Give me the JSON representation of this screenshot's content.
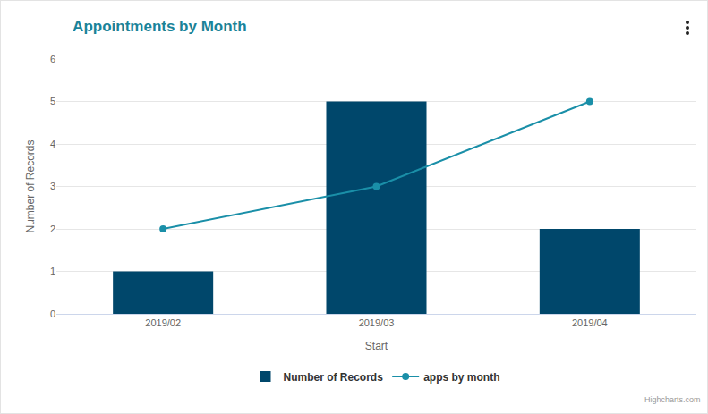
{
  "chart_data": {
    "type": "bar",
    "title": "Appointments by Month",
    "x_label": "Start",
    "y_label": "Number of Records",
    "categories": [
      "2019/02",
      "2019/03",
      "2019/04"
    ],
    "series": [
      {
        "name": "Number of Records",
        "type": "bar",
        "color": "#00476b",
        "values": [
          1,
          5,
          2
        ]
      },
      {
        "name": "apps by month",
        "type": "line",
        "color": "#1a8fa8",
        "marker": "circle",
        "values": [
          2,
          3,
          5
        ]
      }
    ],
    "ylim": [
      0,
      6
    ],
    "yticks": [
      0,
      1,
      2,
      3,
      4,
      5,
      6
    ],
    "grid": true,
    "legend": "bottom",
    "annotations": [
      "Highcharts.com"
    ]
  }
}
